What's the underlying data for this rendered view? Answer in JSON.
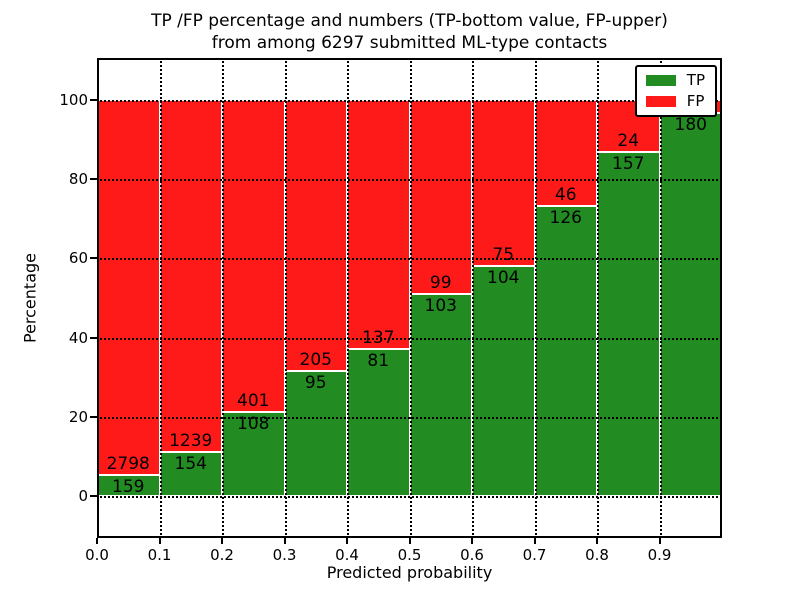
{
  "chart_data": {
    "type": "bar",
    "stacked": true,
    "title_line1": "TP /FP percentage and numbers (TP-bottom value, FP-upper)",
    "title_line2": "from among 6297 submitted ML-type contacts",
    "xlabel": "Predicted probability",
    "ylabel": "Percentage",
    "xlim": [
      0.0,
      1.0
    ],
    "ylim": [
      -10.6,
      110.6
    ],
    "x_ticks": [
      "0.0",
      "0.1",
      "0.2",
      "0.3",
      "0.4",
      "0.5",
      "0.6",
      "0.7",
      "0.8",
      "0.9"
    ],
    "y_ticks": [
      0,
      20,
      40,
      60,
      80,
      100
    ],
    "grid": true,
    "grid_style": "dotted",
    "total_contacts": 6297,
    "colors": {
      "tp": "#228b22",
      "fp": "#ff1a1a"
    },
    "legend": {
      "position": "upper right",
      "items": [
        {
          "label": "TP",
          "color": "#228b22"
        },
        {
          "label": "FP",
          "color": "#ff1a1a"
        }
      ]
    },
    "bins": [
      {
        "range": [
          0.0,
          0.1
        ],
        "tp": 159,
        "fp": 2798,
        "tp_label": "159",
        "fp_label": "2798"
      },
      {
        "range": [
          0.1,
          0.2
        ],
        "tp": 154,
        "fp": 1239,
        "tp_label": "154",
        "fp_label": "1239"
      },
      {
        "range": [
          0.2,
          0.3
        ],
        "tp": 108,
        "fp": 401,
        "tp_label": "108",
        "fp_label": "401"
      },
      {
        "range": [
          0.3,
          0.4
        ],
        "tp": 95,
        "fp": 205,
        "tp_label": "95",
        "fp_label": "205"
      },
      {
        "range": [
          0.4,
          0.5
        ],
        "tp": 81,
        "fp": 137,
        "tp_label": "81",
        "fp_label": "137"
      },
      {
        "range": [
          0.5,
          0.6
        ],
        "tp": 103,
        "fp": 99,
        "tp_label": "103",
        "fp_label": "99"
      },
      {
        "range": [
          0.6,
          0.7
        ],
        "tp": 104,
        "fp": 75,
        "tp_label": "104",
        "fp_label": "75"
      },
      {
        "range": [
          0.7,
          0.8
        ],
        "tp": 126,
        "fp": 46,
        "tp_label": "126",
        "fp_label": "46"
      },
      {
        "range": [
          0.8,
          0.9
        ],
        "tp": 157,
        "fp": 24,
        "tp_label": "157",
        "fp_label": "24"
      },
      {
        "range": [
          0.9,
          1.0
        ],
        "tp": 180,
        "fp": 6,
        "tp_label": "180",
        "fp_label": ""
      }
    ]
  }
}
